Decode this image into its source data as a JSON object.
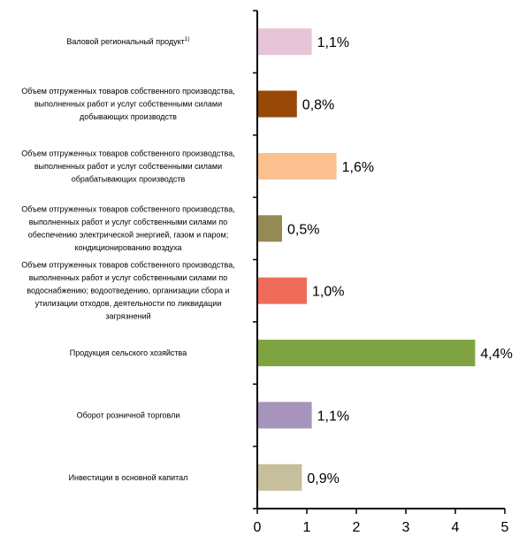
{
  "chart_data": {
    "type": "bar",
    "orientation": "horizontal",
    "categories": [
      [
        "Валовой региональный продукт"
      ],
      [
        "Объем отгруженных товаров собственного производства,",
        "выполненных работ и услуг собственными силами",
        "добывающих производств"
      ],
      [
        "Объем отгруженных товаров собственного производства,",
        "выполненных работ и услуг собственными силами",
        "обрабатывающих производств"
      ],
      [
        "Объем отгруженных товаров собственного производства,",
        "выполненных работ и услуг собственными силами  по",
        "обеспечению электрической энергией, газом и паром;",
        "кондиционированию воздуха"
      ],
      [
        "Объем отгруженных товаров собственного производства,",
        "выполненных работ и услуг собственными силами  по",
        "водоснабжению; водоотведению, организации сбора и",
        "утилизации отходов, деятельности по ликвидации",
        "загрязнений"
      ],
      [
        "Продукция сельского хозяйства"
      ],
      [
        "Оборот розничной торговли"
      ],
      [
        "Инвестиции в основной капитал"
      ]
    ],
    "category_superscripts": [
      "1)",
      "",
      "",
      "",
      "",
      "",
      "",
      ""
    ],
    "values": [
      1.1,
      0.8,
      1.6,
      0.5,
      1.0,
      4.4,
      1.1,
      0.9
    ],
    "value_labels": [
      "1,1%",
      "0,8%",
      "1,6%",
      "0,5%",
      "1,0%",
      "4,4%",
      "1,1%",
      "0,9%"
    ],
    "colors": [
      "#E6C3D7",
      "#974706",
      "#FAC090",
      "#948A54",
      "#F06C5A",
      "#7FA340",
      "#A694BC",
      "#C6BE9C"
    ],
    "xlim": [
      0,
      5
    ],
    "x_ticks": [
      "0",
      "1",
      "2",
      "3",
      "4",
      "5"
    ],
    "title": "",
    "xlabel": "",
    "ylabel": "",
    "grid": false,
    "legend": "none"
  }
}
